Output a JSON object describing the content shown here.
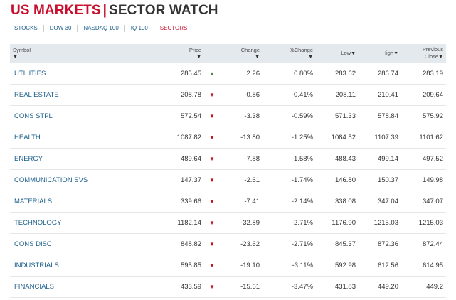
{
  "header": {
    "title_part1": "US MARKETS",
    "separator": "|",
    "title_part2": "SECTOR WATCH"
  },
  "nav": [
    {
      "label": "STOCKS",
      "active": false
    },
    {
      "label": "DOW 30",
      "active": false
    },
    {
      "label": "NASDAQ 100",
      "active": false
    },
    {
      "label": "IQ 100",
      "active": false
    },
    {
      "label": "SECTORS",
      "active": true
    }
  ],
  "columns": {
    "symbol": "Symbol",
    "price": "Price",
    "change": "Change",
    "pct_change": "%Change",
    "low": "Low",
    "high": "High",
    "previous": "Previous",
    "close": "Close",
    "sort_arrow": "▼"
  },
  "rows": [
    {
      "symbol": "UTILITIES",
      "price": "285.45",
      "dir": "up",
      "change": "2.26",
      "pct": "0.80%",
      "low": "283.62",
      "high": "286.74",
      "prev": "283.19"
    },
    {
      "symbol": "REAL ESTATE",
      "price": "208.78",
      "dir": "down",
      "change": "-0.86",
      "pct": "-0.41%",
      "low": "208.11",
      "high": "210.41",
      "prev": "209.64"
    },
    {
      "symbol": "CONS STPL",
      "price": "572.54",
      "dir": "down",
      "change": "-3.38",
      "pct": "-0.59%",
      "low": "571.33",
      "high": "578.84",
      "prev": "575.92"
    },
    {
      "symbol": "HEALTH",
      "price": "1087.82",
      "dir": "down",
      "change": "-13.80",
      "pct": "-1.25%",
      "low": "1084.52",
      "high": "1107.39",
      "prev": "1101.62"
    },
    {
      "symbol": "ENERGY",
      "price": "489.64",
      "dir": "down",
      "change": "-7.88",
      "pct": "-1.58%",
      "low": "488.43",
      "high": "499.14",
      "prev": "497.52"
    },
    {
      "symbol": "COMMUNICATION SVS",
      "price": "147.37",
      "dir": "down",
      "change": "-2.61",
      "pct": "-1.74%",
      "low": "146.80",
      "high": "150.37",
      "prev": "149.98"
    },
    {
      "symbol": "MATERIALS",
      "price": "339.66",
      "dir": "down",
      "change": "-7.41",
      "pct": "-2.14%",
      "low": "338.08",
      "high": "347.04",
      "prev": "347.07"
    },
    {
      "symbol": "TECHNOLOGY",
      "price": "1182.14",
      "dir": "down",
      "change": "-32.89",
      "pct": "-2.71%",
      "low": "1176.90",
      "high": "1215.03",
      "prev": "1215.03"
    },
    {
      "symbol": "CONS DISC",
      "price": "848.82",
      "dir": "down",
      "change": "-23.62",
      "pct": "-2.71%",
      "low": "845.37",
      "high": "872.36",
      "prev": "872.44"
    },
    {
      "symbol": "INDUSTRIALS",
      "price": "595.85",
      "dir": "down",
      "change": "-19.10",
      "pct": "-3.11%",
      "low": "592.98",
      "high": "612.56",
      "prev": "614.95"
    },
    {
      "symbol": "FINANCIALS",
      "price": "433.59",
      "dir": "down",
      "change": "-15.61",
      "pct": "-3.47%",
      "low": "431.83",
      "high": "449.20",
      "prev": "449.2"
    }
  ],
  "icons": {
    "up": "▲",
    "down": "▼",
    "up_name": "up-triangle-icon",
    "down_name": "down-triangle-icon"
  },
  "colors": {
    "brand_red": "#c8102e",
    "link_blue": "#1a5e8a",
    "up_green": "#3a8a3a",
    "down_red": "#c0141b",
    "header_bg": "#e4e9ee"
  }
}
